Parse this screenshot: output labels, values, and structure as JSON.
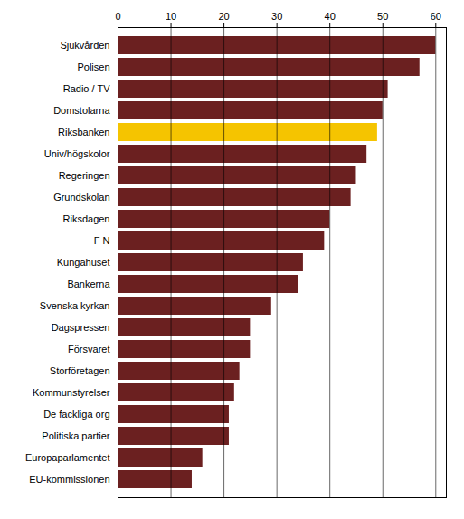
{
  "chart_data": {
    "type": "bar",
    "orientation": "horizontal",
    "categories": [
      "Sjukvården",
      "Polisen",
      "Radio / TV",
      "Domstolarna",
      "Riksbanken",
      "Univ/högskolor",
      "Regeringen",
      "Grundskolan",
      "Riksdagen",
      "F N",
      "Kungahuset",
      "Bankerna",
      "Svenska kyrkan",
      "Dagspressen",
      "Försvaret",
      "Storföretagen",
      "Kommunstyrelser",
      "De fackliga org",
      "Politiska partier",
      "Europaparlamentet",
      "EU-kommissionen"
    ],
    "values": [
      60,
      57,
      51,
      50,
      49,
      47,
      45,
      44,
      40,
      39,
      35,
      34,
      29,
      25,
      25,
      23,
      22,
      21,
      21,
      16,
      14
    ],
    "colors": [
      "#6B2020",
      "#6B2020",
      "#6B2020",
      "#6B2020",
      "#F5C400",
      "#6B2020",
      "#6B2020",
      "#6B2020",
      "#6B2020",
      "#6B2020",
      "#6B2020",
      "#6B2020",
      "#6B2020",
      "#6B2020",
      "#6B2020",
      "#6B2020",
      "#6B2020",
      "#6B2020",
      "#6B2020",
      "#6B2020",
      "#6B2020"
    ],
    "xlim": [
      0,
      62
    ],
    "xticks": [
      0,
      10,
      20,
      30,
      40,
      50,
      60
    ],
    "grid": true
  }
}
